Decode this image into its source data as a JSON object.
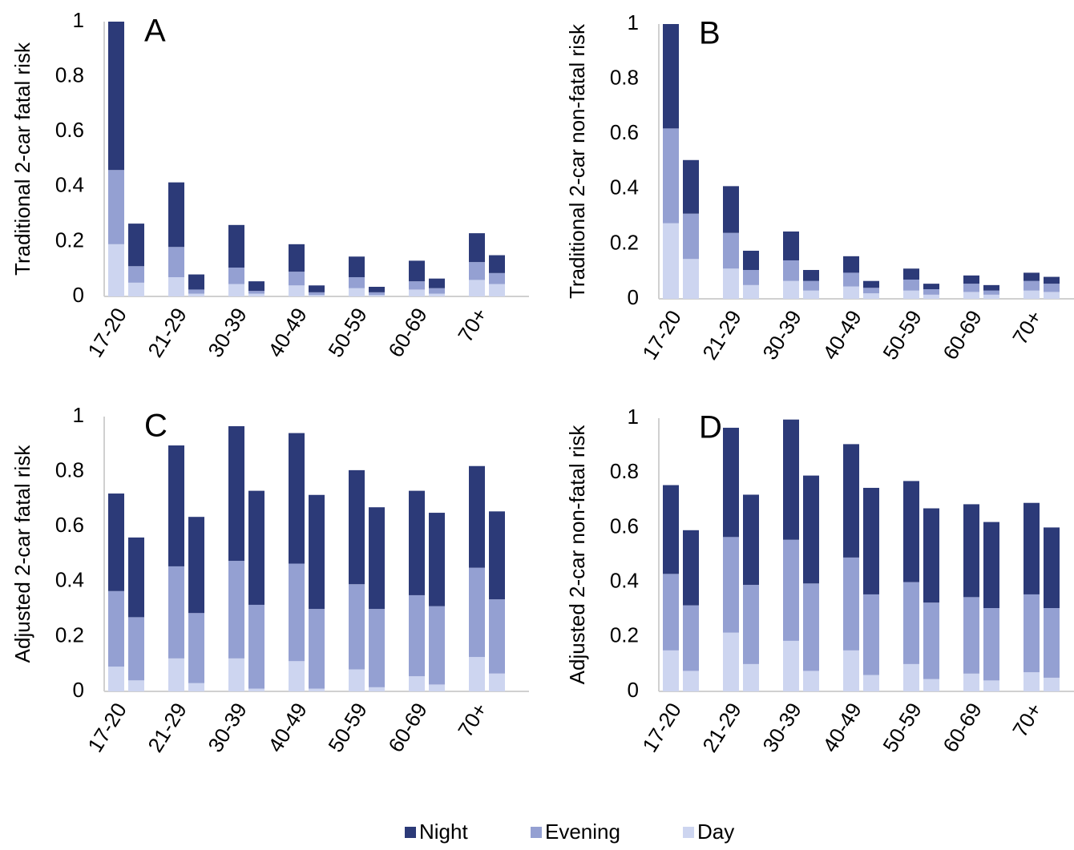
{
  "chart_data": [
    {
      "type": "bar",
      "stacked": true,
      "label": "A",
      "y_label": "Traditional 2-car fatal risk",
      "categories": [
        "17-20",
        null,
        "21-29",
        null,
        "30-39",
        null,
        "40-49",
        null,
        "50-59",
        null,
        "60-69",
        null,
        "70+",
        null
      ],
      "ylim": [
        0,
        1
      ],
      "yticks": [
        0,
        0.2,
        0.4,
        0.6,
        0.8,
        1
      ],
      "series": [
        {
          "name": "Day",
          "color": "#cdd5f0",
          "values": [
            0.19,
            0.05,
            0.07,
            0.01,
            0.045,
            0.01,
            0.04,
            0.005,
            0.03,
            0.005,
            0.025,
            0.01,
            0.06,
            0.045
          ]
        },
        {
          "name": "Evening",
          "color": "#94a0d2",
          "values": [
            0.27,
            0.06,
            0.11,
            0.015,
            0.06,
            0.01,
            0.05,
            0.01,
            0.04,
            0.01,
            0.03,
            0.02,
            0.065,
            0.04
          ]
        },
        {
          "name": "Night",
          "color": "#2c3a78",
          "values": [
            0.54,
            0.155,
            0.235,
            0.055,
            0.155,
            0.035,
            0.1,
            0.025,
            0.075,
            0.02,
            0.075,
            0.035,
            0.105,
            0.065
          ]
        }
      ]
    },
    {
      "type": "bar",
      "stacked": true,
      "label": "B",
      "y_label": "Traditional 2-car non-fatal risk",
      "categories": [
        "17-20",
        null,
        "21-29",
        null,
        "30-39",
        null,
        "40-49",
        null,
        "50-59",
        null,
        "60-69",
        null,
        "70+",
        null
      ],
      "ylim": [
        0,
        1
      ],
      "yticks": [
        0,
        0.2,
        0.4,
        0.6,
        0.8,
        1
      ],
      "series": [
        {
          "values": [
            0.275,
            0.145,
            0.11,
            0.05,
            0.065,
            0.03,
            0.045,
            0.02,
            0.03,
            0.015,
            0.025,
            0.015,
            0.03,
            0.025
          ]
        },
        {
          "values": [
            0.345,
            0.165,
            0.13,
            0.055,
            0.075,
            0.035,
            0.05,
            0.02,
            0.04,
            0.02,
            0.03,
            0.015,
            0.035,
            0.03
          ]
        },
        {
          "values": [
            0.38,
            0.195,
            0.17,
            0.07,
            0.105,
            0.04,
            0.06,
            0.025,
            0.04,
            0.02,
            0.03,
            0.02,
            0.03,
            0.025
          ]
        }
      ]
    },
    {
      "type": "bar",
      "stacked": true,
      "label": "C",
      "y_label": "Adjusted 2-car fatal risk",
      "categories": [
        "17-20",
        null,
        "21-29",
        null,
        "30-39",
        null,
        "40-49",
        null,
        "50-59",
        null,
        "60-69",
        null,
        "70+",
        null
      ],
      "ylim": [
        0,
        1
      ],
      "yticks": [
        0,
        0.2,
        0.4,
        0.6,
        0.8,
        1
      ],
      "series": [
        {
          "values": [
            0.09,
            0.04,
            0.12,
            0.03,
            0.12,
            0.01,
            0.11,
            0.01,
            0.08,
            0.015,
            0.055,
            0.025,
            0.125,
            0.065
          ]
        },
        {
          "values": [
            0.275,
            0.23,
            0.335,
            0.255,
            0.355,
            0.305,
            0.355,
            0.29,
            0.31,
            0.285,
            0.295,
            0.285,
            0.325,
            0.27
          ]
        },
        {
          "values": [
            0.355,
            0.29,
            0.44,
            0.35,
            0.49,
            0.415,
            0.475,
            0.415,
            0.415,
            0.37,
            0.38,
            0.34,
            0.37,
            0.32
          ]
        }
      ]
    },
    {
      "type": "bar",
      "stacked": true,
      "label": "D",
      "y_label": "Adjusted 2-car non-fatal risk",
      "categories": [
        "17-20",
        null,
        "21-29",
        null,
        "30-39",
        null,
        "40-49",
        null,
        "50-59",
        null,
        "60-69",
        null,
        "70+",
        null
      ],
      "ylim": [
        0,
        1
      ],
      "yticks": [
        0,
        0.2,
        0.4,
        0.6,
        0.8,
        1
      ],
      "series": [
        {
          "values": [
            0.15,
            0.075,
            0.215,
            0.1,
            0.185,
            0.075,
            0.15,
            0.06,
            0.1,
            0.045,
            0.065,
            0.04,
            0.07,
            0.05
          ]
        },
        {
          "values": [
            0.28,
            0.24,
            0.35,
            0.29,
            0.37,
            0.32,
            0.34,
            0.295,
            0.3,
            0.28,
            0.28,
            0.265,
            0.285,
            0.255
          ]
        },
        {
          "values": [
            0.325,
            0.275,
            0.4,
            0.33,
            0.44,
            0.395,
            0.415,
            0.39,
            0.37,
            0.345,
            0.34,
            0.315,
            0.335,
            0.295
          ]
        }
      ]
    }
  ]
}
